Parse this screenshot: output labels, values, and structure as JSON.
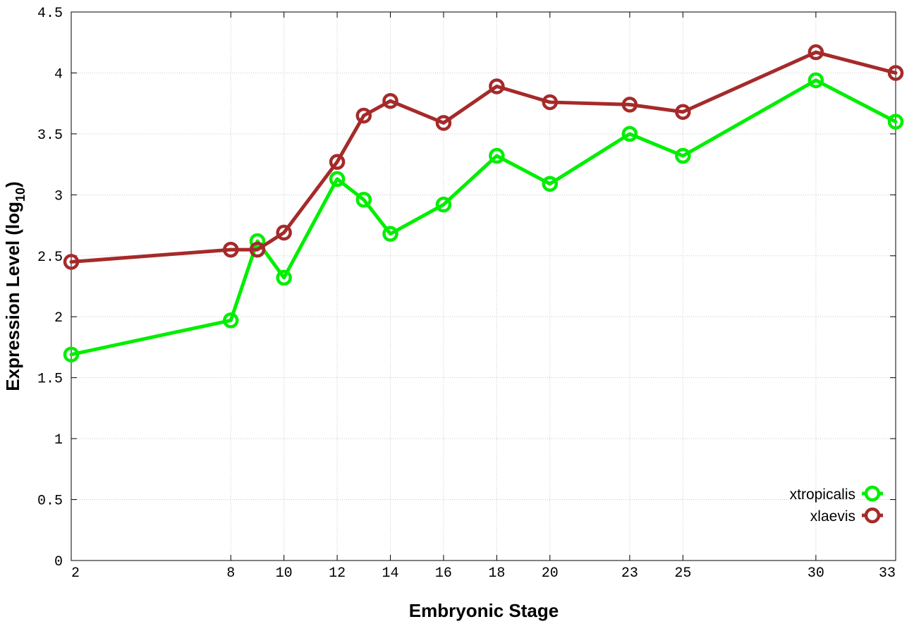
{
  "chart_data": {
    "type": "line",
    "title": "",
    "xlabel": "Embryonic Stage",
    "ylabel": "Expression Level (log",
    "ylabel_subscript": "10",
    "ylabel_suffix": ")",
    "x": [
      2,
      8,
      9,
      10,
      12,
      13,
      14,
      16,
      18,
      20,
      23,
      25,
      30,
      33
    ],
    "x_ticks": [
      2,
      8,
      10,
      12,
      14,
      16,
      18,
      20,
      23,
      25,
      30,
      33
    ],
    "x_tick_labels": [
      "2",
      "8",
      "10",
      "12",
      "14",
      "16",
      "18",
      "20",
      "23",
      "25",
      "30",
      "33"
    ],
    "xlim": [
      2,
      33
    ],
    "ylim": [
      0,
      4.5
    ],
    "y_ticks": [
      0,
      0.5,
      1,
      1.5,
      2,
      2.5,
      3,
      3.5,
      4,
      4.5
    ],
    "y_tick_labels": [
      "0",
      "0.5",
      "1",
      "1.5",
      "2",
      "2.5",
      "3",
      "3.5",
      "4",
      "4.5"
    ],
    "grid": true,
    "legend_position": "bottom-right",
    "series": [
      {
        "name": "xtropicalis",
        "color": "#00ee00",
        "marker": "circle-open",
        "values": [
          1.69,
          1.97,
          2.62,
          2.32,
          3.13,
          2.96,
          2.68,
          2.92,
          3.32,
          3.09,
          3.5,
          3.32,
          3.94,
          3.6
        ]
      },
      {
        "name": "xlaevis",
        "color": "#a52a2a",
        "marker": "circle-open",
        "values": [
          2.45,
          2.55,
          2.55,
          2.69,
          3.27,
          3.65,
          3.77,
          3.59,
          3.89,
          3.76,
          3.74,
          3.68,
          4.17,
          4.0
        ]
      }
    ]
  }
}
